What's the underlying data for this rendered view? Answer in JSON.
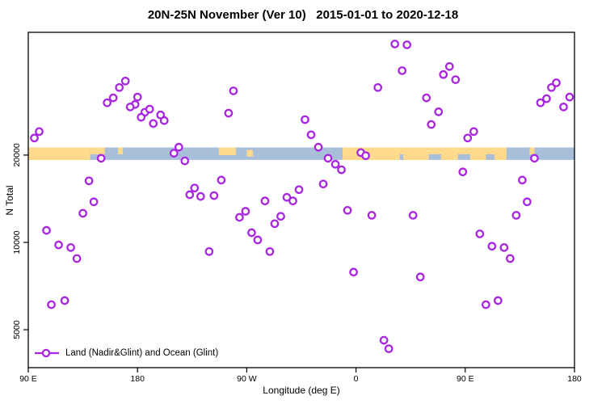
{
  "chart_data": {
    "type": "scatter",
    "title": "20N-25N November (Ver 10)   2015-01-01 to 2020-12-18",
    "xlabel": "Longitude (deg E)",
    "ylabel": "N Total",
    "x_axis": {
      "range": [
        90,
        540
      ],
      "ticks": [
        {
          "value": 90,
          "label": "90 E"
        },
        {
          "value": 180,
          "label": "180"
        },
        {
          "value": 270,
          "label": "90 W"
        },
        {
          "value": 360,
          "label": "0"
        },
        {
          "value": 450,
          "label": "90 E"
        },
        {
          "value": 540,
          "label": "180"
        }
      ]
    },
    "y_axis": {
      "scale": "log",
      "range": [
        3700,
        53000
      ],
      "ticks": [
        {
          "value": 5000,
          "label": "5000"
        },
        {
          "value": 10000,
          "label": "10000"
        },
        {
          "value": 20000,
          "label": "20000"
        }
      ]
    },
    "legend": {
      "label": "Land (Nadir&Glint) and Ocean (Glint)",
      "position": "bottom-left"
    },
    "marker": {
      "shape": "open-circle",
      "color": "#A826E2",
      "fill": "#FFFFFF"
    },
    "map_band": {
      "value_range": [
        19250,
        21250
      ],
      "ocean_color": "#A9BED9",
      "land_color": "#FFD98C",
      "land_segments": [
        {
          "from": 90,
          "to": 141,
          "part": "full"
        },
        {
          "from": 141,
          "to": 153,
          "part": "top"
        },
        {
          "from": 164,
          "to": 168,
          "part": "top"
        },
        {
          "from": 247,
          "to": 261,
          "part": "top23"
        },
        {
          "from": 270,
          "to": 275,
          "part": "mid"
        },
        {
          "from": 349,
          "to": 484,
          "part": "full"
        },
        {
          "from": 503,
          "to": 507,
          "part": "top"
        }
      ],
      "sea_notches": [
        {
          "from": 396,
          "to": 399
        },
        {
          "from": 420,
          "to": 430
        },
        {
          "from": 444,
          "to": 454
        },
        {
          "from": 467,
          "to": 474
        }
      ]
    },
    "points": [
      [
        99,
        24100
      ],
      [
        95,
        22900
      ],
      [
        170,
        36000
      ],
      [
        165,
        34200
      ],
      [
        160,
        31500
      ],
      [
        155,
        30300
      ],
      [
        180,
        31700
      ],
      [
        178,
        29900
      ],
      [
        174,
        29300
      ],
      [
        186,
        28100
      ],
      [
        183,
        27000
      ],
      [
        190,
        28800
      ],
      [
        193,
        25700
      ],
      [
        199,
        27500
      ],
      [
        202,
        26300
      ],
      [
        214,
        21300
      ],
      [
        210,
        20300
      ],
      [
        219,
        19100
      ],
      [
        150,
        19500
      ],
      [
        140,
        16300
      ],
      [
        144,
        13800
      ],
      [
        135,
        12600
      ],
      [
        227,
        15400
      ],
      [
        223,
        14600
      ],
      [
        232,
        14400
      ],
      [
        259,
        33300
      ],
      [
        255,
        27900
      ],
      [
        318,
        26500
      ],
      [
        323,
        23500
      ],
      [
        329,
        21300
      ],
      [
        337,
        19500
      ],
      [
        343,
        18600
      ],
      [
        348,
        17800
      ],
      [
        364,
        20400
      ],
      [
        368,
        19900
      ],
      [
        378,
        34200
      ],
      [
        249,
        16400
      ],
      [
        243,
        14500
      ],
      [
        333,
        15900
      ],
      [
        313,
        15200
      ],
      [
        303,
        14300
      ],
      [
        308,
        13900
      ],
      [
        285,
        13900
      ],
      [
        392,
        48300
      ],
      [
        402,
        48000
      ],
      [
        398,
        39100
      ],
      [
        437,
        40400
      ],
      [
        432,
        37900
      ],
      [
        442,
        36400
      ],
      [
        418,
        31500
      ],
      [
        428,
        28200
      ],
      [
        422,
        25500
      ],
      [
        457,
        24100
      ],
      [
        452,
        22900
      ],
      [
        521,
        34200
      ],
      [
        525,
        35500
      ],
      [
        536,
        31700
      ],
      [
        512,
        30300
      ],
      [
        517,
        31300
      ],
      [
        531,
        29300
      ],
      [
        507,
        19500
      ],
      [
        448,
        17500
      ],
      [
        497,
        16400
      ],
      [
        501,
        13800
      ],
      [
        105,
        11000
      ],
      [
        115,
        9800
      ],
      [
        125,
        9600
      ],
      [
        130,
        8800
      ],
      [
        109,
        6100
      ],
      [
        120,
        6300
      ],
      [
        239,
        9300
      ],
      [
        269,
        12800
      ],
      [
        264,
        12200
      ],
      [
        298,
        12300
      ],
      [
        293,
        11600
      ],
      [
        274,
        10800
      ],
      [
        279,
        10200
      ],
      [
        289,
        9300
      ],
      [
        353,
        12900
      ],
      [
        373,
        12400
      ],
      [
        358,
        7900
      ],
      [
        383,
        4600
      ],
      [
        387,
        4300
      ],
      [
        407,
        12400
      ],
      [
        492,
        12400
      ],
      [
        462,
        10700
      ],
      [
        472,
        9700
      ],
      [
        482,
        9600
      ],
      [
        487,
        8800
      ],
      [
        413,
        7600
      ],
      [
        477,
        6300
      ],
      [
        467,
        6100
      ]
    ]
  }
}
